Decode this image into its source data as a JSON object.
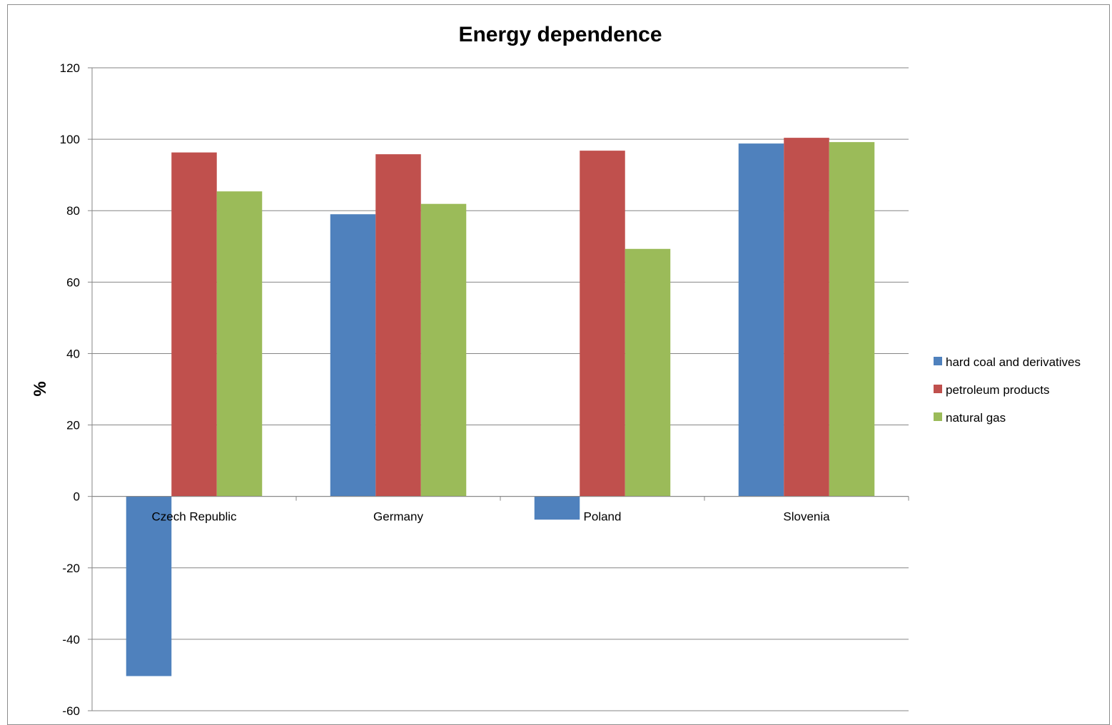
{
  "chart_data": {
    "type": "bar",
    "title": "Energy dependence",
    "xlabel": "",
    "ylabel": "%",
    "ylim": [
      -60,
      120
    ],
    "yticks": [
      -60,
      -40,
      -20,
      0,
      20,
      40,
      60,
      80,
      100,
      120
    ],
    "grid": true,
    "legend_position": "right",
    "categories": [
      "Czech Republic",
      "Germany",
      "Poland",
      "Slovenia"
    ],
    "series": [
      {
        "name": "hard coal and derivatives",
        "color": "#4f81bd",
        "values": [
          -50.3,
          79.0,
          -6.5,
          98.8
        ]
      },
      {
        "name": "petroleum products",
        "color": "#c0504d",
        "values": [
          96.3,
          95.8,
          96.8,
          100.4
        ]
      },
      {
        "name": "natural gas",
        "color": "#9bbb59",
        "values": [
          85.4,
          81.9,
          69.3,
          99.2
        ]
      }
    ]
  }
}
